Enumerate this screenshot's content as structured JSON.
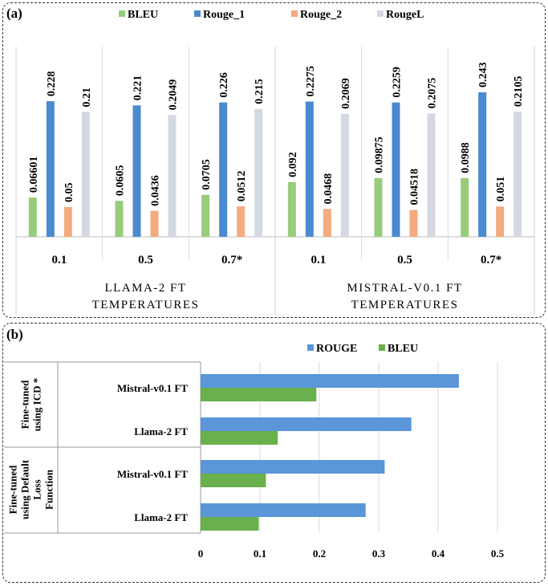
{
  "chart_data": [
    {
      "type": "bar",
      "panel_label": "(a)",
      "series": [
        {
          "name": "BLEU",
          "color": "#97cc7a",
          "values": [
            0.06601,
            0.0605,
            0.0705,
            0.092,
            0.09875,
            0.0988
          ]
        },
        {
          "name": "Rouge_1",
          "color": "#4a8ad0",
          "values": [
            0.228,
            0.221,
            0.226,
            0.2275,
            0.2259,
            0.243
          ]
        },
        {
          "name": "Rouge_2",
          "color": "#f3ab7f",
          "values": [
            0.05,
            0.0436,
            0.0512,
            0.0468,
            0.04518,
            0.051
          ]
        },
        {
          "name": "RougeL",
          "color": "#d3d8e2",
          "values": [
            0.21,
            0.2049,
            0.215,
            0.2069,
            0.2075,
            0.2105
          ]
        }
      ],
      "value_labels": [
        [
          "0.06601",
          "0.0605",
          "0.0705",
          "0.092",
          "0.09875",
          "0.0988"
        ],
        [
          "0.228",
          "0.221",
          "0.226",
          "0.2275",
          "0.2259",
          "0.243"
        ],
        [
          "0.05",
          "0.0436",
          "0.0512",
          "0.0468",
          "0.04518",
          "0.051"
        ],
        [
          "0.21",
          "0.2049",
          "0.215",
          "0.2069",
          "0.2075",
          "0.2105"
        ]
      ],
      "categories": [
        "0.1",
        "0.5",
        "0.7*",
        "0.1",
        "0.5",
        "0.7*"
      ],
      "groups": [
        {
          "line1": "LLAMA-2 FT",
          "line2": "TEMPERATURES"
        },
        {
          "line1": "MISTRAL-V0.1 FT",
          "line2": "TEMPERATURES"
        }
      ],
      "ylim": [
        0,
        0.243
      ],
      "legend": "top"
    },
    {
      "type": "bar",
      "orientation": "horizontal",
      "panel_label": "(b)",
      "series": [
        {
          "name": "ROUGE",
          "color": "#5a96d8",
          "values": [
            0.435,
            0.355,
            0.31,
            0.278
          ]
        },
        {
          "name": "BLEU",
          "color": "#6ab04c",
          "values": [
            0.195,
            0.13,
            0.11,
            0.098
          ]
        }
      ],
      "categories": [
        "Mistral-v0.1 FT",
        "Llama-2 FT",
        "Mistral-v0.1 FT",
        "Llama-2 FT"
      ],
      "groups": [
        {
          "lines": [
            "Fine-tuned",
            "using ICD *"
          ]
        },
        {
          "lines": [
            "Fine-tuned",
            "using Default",
            "Loss",
            "Function"
          ]
        }
      ],
      "xticks": [
        "0",
        "0.1",
        "0.2",
        "0.3",
        "0.4",
        "0.5"
      ],
      "xlim": [
        0,
        0.5
      ],
      "grid": true,
      "legend": "top"
    }
  ]
}
